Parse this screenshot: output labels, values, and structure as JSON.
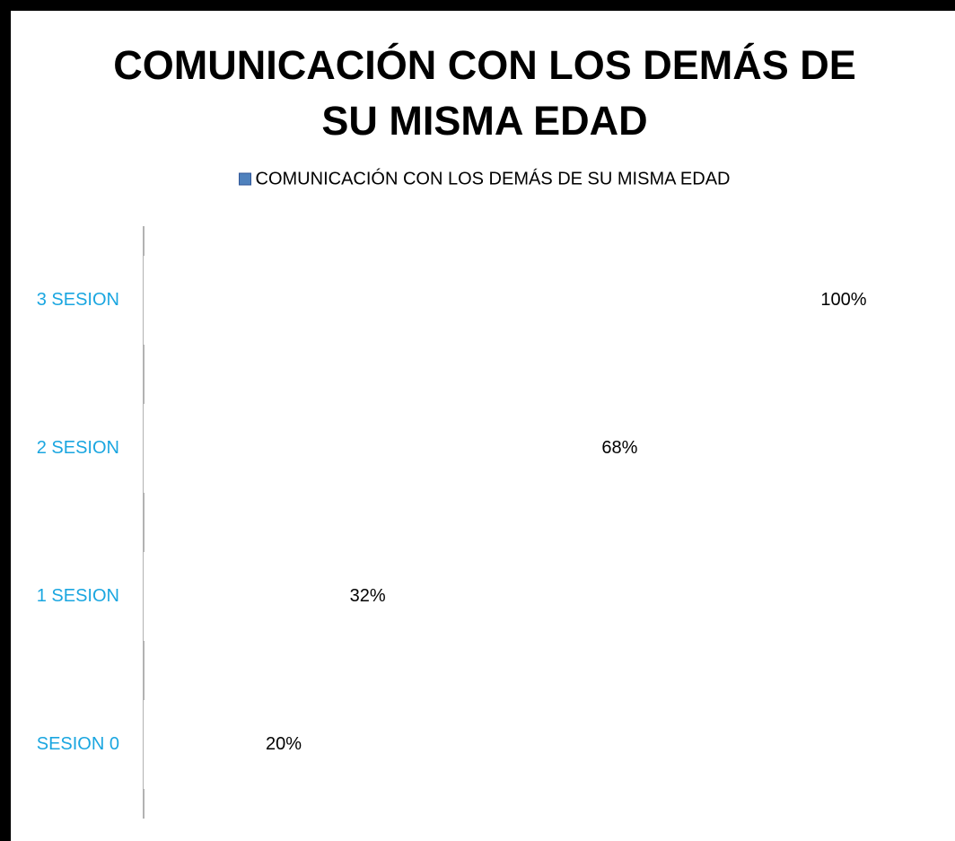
{
  "chart_data": {
    "type": "hbar",
    "title": "COMUNICACIÓN CON LOS DEMÁS DE SU MISMA EDAD",
    "categories": [
      "SESION  0",
      "1 SESION",
      "2 SESION",
      "3 SESION"
    ],
    "series": [
      {
        "name": "COMUNICACIÓN CON LOS DEMÁS DE SU MISMA EDAD",
        "color": "#4f81bd",
        "values": [
          20,
          32,
          68,
          100
        ],
        "value_labels": [
          "20%",
          "32%",
          "68%",
          "100%"
        ]
      }
    ],
    "xlim": [
      0,
      100
    ],
    "bar_color": "#ffffff",
    "category_color": "#1aa6e0",
    "legend": "top"
  }
}
